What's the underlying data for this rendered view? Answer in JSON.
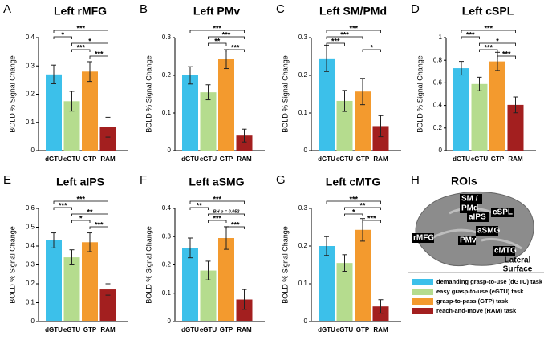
{
  "chart_data": [
    {
      "type": "bar",
      "panel": "A",
      "title": "Left rMFG",
      "ylabel": "BOLD % Signal Change",
      "categories": [
        "dGTU",
        "eGTU",
        "GTP",
        "RAM"
      ],
      "values": [
        0.27,
        0.175,
        0.28,
        0.083
      ],
      "errors": [
        0.033,
        0.035,
        0.035,
        0.035
      ],
      "colors": [
        "#3cc0ea",
        "#b5dc8e",
        "#f39a2e",
        "#a31f1f"
      ],
      "ylim": [
        0,
        0.4
      ],
      "yticks": [
        0,
        0.1,
        0.2,
        0.3,
        0.4
      ],
      "brackets": [
        {
          "from": "dGTU",
          "to": "RAM",
          "label": "***"
        },
        {
          "from": "dGTU",
          "to": "eGTU",
          "label": "*"
        },
        {
          "from": "eGTU",
          "to": "RAM",
          "label": "*"
        },
        {
          "from": "eGTU",
          "to": "GTP",
          "label": "***"
        },
        {
          "from": "GTP",
          "to": "RAM",
          "label": "***"
        }
      ]
    },
    {
      "type": "bar",
      "panel": "B",
      "title": "Left PMv",
      "ylabel": "BOLD % Signal Change",
      "categories": [
        "dGTU",
        "eGTU",
        "GTP",
        "RAM"
      ],
      "values": [
        0.2,
        0.155,
        0.243,
        0.04
      ],
      "errors": [
        0.023,
        0.02,
        0.025,
        0.017
      ],
      "colors": [
        "#3cc0ea",
        "#b5dc8e",
        "#f39a2e",
        "#a31f1f"
      ],
      "ylim": [
        0,
        0.3
      ],
      "yticks": [
        0,
        0.1,
        0.2,
        0.3
      ],
      "brackets": [
        {
          "from": "dGTU",
          "to": "RAM",
          "label": "***"
        },
        {
          "from": "eGTU",
          "to": "RAM",
          "label": "***"
        },
        {
          "from": "eGTU",
          "to": "GTP",
          "label": "**"
        },
        {
          "from": "GTP",
          "to": "RAM",
          "label": "***"
        }
      ]
    },
    {
      "type": "bar",
      "panel": "C",
      "title": "Left SM/PMd",
      "ylabel": "BOLD % Signal Change",
      "categories": [
        "dGTU",
        "eGTU",
        "GTP",
        "RAM"
      ],
      "values": [
        0.245,
        0.132,
        0.157,
        0.065
      ],
      "errors": [
        0.035,
        0.028,
        0.035,
        0.028
      ],
      "colors": [
        "#3cc0ea",
        "#b5dc8e",
        "#f39a2e",
        "#a31f1f"
      ],
      "ylim": [
        0,
        0.3
      ],
      "yticks": [
        0,
        0.1,
        0.2,
        0.3
      ],
      "brackets": [
        {
          "from": "dGTU",
          "to": "RAM",
          "label": "***"
        },
        {
          "from": "dGTU",
          "to": "GTP",
          "label": "***"
        },
        {
          "from": "dGTU",
          "to": "eGTU",
          "label": "***"
        },
        {
          "from": "GTP",
          "to": "RAM",
          "label": "*"
        }
      ]
    },
    {
      "type": "bar",
      "panel": "D",
      "title": "Left cSPL",
      "ylabel": "BOLD % Signal Change",
      "categories": [
        "dGTU",
        "eGTU",
        "GTP",
        "RAM"
      ],
      "values": [
        0.73,
        0.59,
        0.79,
        0.405
      ],
      "errors": [
        0.06,
        0.06,
        0.08,
        0.07
      ],
      "colors": [
        "#3cc0ea",
        "#b5dc8e",
        "#f39a2e",
        "#a31f1f"
      ],
      "ylim": [
        0,
        1
      ],
      "yticks": [
        0,
        0.2,
        0.4,
        0.6,
        0.8,
        1
      ],
      "brackets": [
        {
          "from": "dGTU",
          "to": "RAM",
          "label": "***"
        },
        {
          "from": "dGTU",
          "to": "eGTU",
          "label": "***"
        },
        {
          "from": "eGTU",
          "to": "RAM",
          "label": "*"
        },
        {
          "from": "eGTU",
          "to": "GTP",
          "label": "***"
        },
        {
          "from": "GTP",
          "to": "RAM",
          "label": "***"
        }
      ]
    },
    {
      "type": "bar",
      "panel": "E",
      "title": "Left aIPS",
      "ylabel": "BOLD % Signal Change",
      "categories": [
        "dGTU",
        "eGTU",
        "GTP",
        "RAM"
      ],
      "values": [
        0.43,
        0.34,
        0.42,
        0.17
      ],
      "errors": [
        0.04,
        0.04,
        0.05,
        0.03
      ],
      "colors": [
        "#3cc0ea",
        "#b5dc8e",
        "#f39a2e",
        "#a31f1f"
      ],
      "ylim": [
        0,
        0.6
      ],
      "yticks": [
        0,
        0.1,
        0.2,
        0.3,
        0.4,
        0.5,
        0.6
      ],
      "brackets": [
        {
          "from": "dGTU",
          "to": "RAM",
          "label": "***"
        },
        {
          "from": "dGTU",
          "to": "eGTU",
          "label": "***"
        },
        {
          "from": "eGTU",
          "to": "RAM",
          "label": "**"
        },
        {
          "from": "eGTU",
          "to": "GTP",
          "label": "*"
        },
        {
          "from": "GTP",
          "to": "RAM",
          "label": "***"
        }
      ]
    },
    {
      "type": "bar",
      "panel": "F",
      "title": "Left aSMG",
      "ylabel": "BOLD % Signal Change",
      "categories": [
        "dGTU",
        "eGTU",
        "GTP",
        "RAM"
      ],
      "values": [
        0.26,
        0.18,
        0.295,
        0.078
      ],
      "errors": [
        0.035,
        0.033,
        0.04,
        0.035
      ],
      "colors": [
        "#3cc0ea",
        "#b5dc8e",
        "#f39a2e",
        "#a31f1f"
      ],
      "ylim": [
        0,
        0.4
      ],
      "yticks": [
        0,
        0.1,
        0.2,
        0.3,
        0.4
      ],
      "brackets": [
        {
          "from": "dGTU",
          "to": "RAM",
          "label": "***"
        },
        {
          "from": "dGTU",
          "to": "eGTU",
          "label": "**"
        },
        {
          "from": "eGTU",
          "to": "RAM",
          "label": "BH p = 0.052"
        },
        {
          "from": "eGTU",
          "to": "GTP",
          "label": "***"
        },
        {
          "from": "GTP",
          "to": "RAM",
          "label": "***"
        }
      ]
    },
    {
      "type": "bar",
      "panel": "G",
      "title": "Left cMTG",
      "ylabel": "BOLD % Signal Change",
      "categories": [
        "dGTU",
        "eGTU",
        "GTP",
        "RAM"
      ],
      "values": [
        0.2,
        0.155,
        0.243,
        0.04
      ],
      "errors": [
        0.025,
        0.022,
        0.03,
        0.018
      ],
      "colors": [
        "#3cc0ea",
        "#b5dc8e",
        "#f39a2e",
        "#a31f1f"
      ],
      "ylim": [
        0,
        0.3
      ],
      "yticks": [
        0,
        0.1,
        0.2,
        0.3
      ],
      "brackets": [
        {
          "from": "dGTU",
          "to": "RAM",
          "label": "***"
        },
        {
          "from": "eGTU",
          "to": "RAM",
          "label": "**"
        },
        {
          "from": "eGTU",
          "to": "GTP",
          "label": "*"
        },
        {
          "from": "GTP",
          "to": "RAM",
          "label": "***"
        }
      ]
    }
  ],
  "roi_panel": {
    "panel": "H",
    "title": "ROIs",
    "labels": [
      "SM /",
      "PMd",
      "cSPL",
      "aIPS",
      "aSMG",
      "rMFG",
      "PMv",
      "cMTG"
    ],
    "caption": [
      "Lateral",
      "Surface"
    ]
  },
  "legend": [
    {
      "label": "demanding grasp-to-use (dGTU) task",
      "color": "#3cc0ea"
    },
    {
      "label": "easy grasp-to-use (eGTU) task",
      "color": "#b5dc8e"
    },
    {
      "label": "grasp-to-pass (GTP) task",
      "color": "#f39a2e"
    },
    {
      "label": "reach-and-move (RAM) task",
      "color": "#a31f1f"
    }
  ]
}
